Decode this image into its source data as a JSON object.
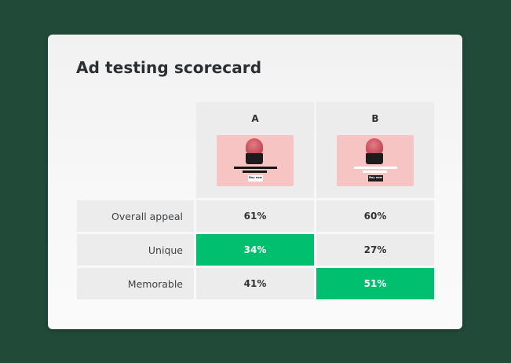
{
  "title": "Ad testing scorecard",
  "columns": [
    {
      "letter": "A",
      "ad_button_label": "Buy now"
    },
    {
      "letter": "B",
      "ad_button_label": "Buy now"
    }
  ],
  "rows": [
    {
      "label": "Overall appeal",
      "a": "61%",
      "b": "60%",
      "highlight": "none"
    },
    {
      "label": "Unique",
      "a": "34%",
      "b": "27%",
      "highlight": "a"
    },
    {
      "label": "Memorable",
      "a": "41%",
      "b": "51%",
      "highlight": "b"
    }
  ],
  "colors": {
    "background": "#214a39",
    "highlight": "#00bf6f",
    "cell": "#ececec",
    "ad_background": "#f7c4c4"
  }
}
